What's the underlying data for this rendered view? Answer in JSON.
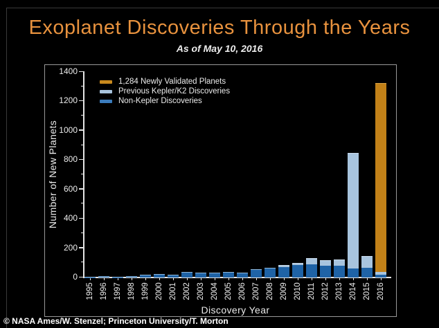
{
  "header": {
    "title": "Exoplanet Discoveries Through the Years",
    "subtitle": "As of May 10, 2016"
  },
  "footer": {
    "credit": "© NASA Ames/W. Stenzel; Princeton University/T. Morton"
  },
  "colors": {
    "background": "#000000",
    "title": "#E8923E",
    "text": "#ECECEC",
    "axis": "#E6E6E6",
    "frame": "#9A9A9A",
    "non_kepler_bar": "#1F63A6",
    "non_kepler_edge": "#8FB6D8",
    "kepler_bar": "#A8C4DE",
    "kepler_edge": "#CBDDEE",
    "new_planets_bar": "#C28118",
    "new_planets_edge": "#D9A347",
    "legend_non_kepler": "#3B7CBC"
  },
  "chart_data": {
    "type": "bar",
    "stacked": true,
    "title": "Exoplanet Discoveries Through the Years",
    "subtitle": "As of May 10, 2016",
    "xlabel": "Discovery Year",
    "ylabel": "Number of New Planets",
    "ylim": [
      0,
      1400
    ],
    "yticks": [
      0,
      200,
      400,
      600,
      800,
      1000,
      1200,
      1400
    ],
    "grid": false,
    "legend_position": "upper-left",
    "categories": [
      "1995",
      "1996",
      "1997",
      "1998",
      "1999",
      "2000",
      "2001",
      "2002",
      "2003",
      "2004",
      "2005",
      "2006",
      "2007",
      "2008",
      "2009",
      "2010",
      "2011",
      "2012",
      "2013",
      "2014",
      "2015",
      "2016"
    ],
    "series": [
      {
        "name": "Non-Kepler Discoveries",
        "color": "#1F63A6",
        "values": [
          1,
          6,
          1,
          7,
          14,
          17,
          13,
          31,
          26,
          29,
          33,
          29,
          50,
          60,
          72,
          85,
          90,
          80,
          80,
          60,
          65,
          20
        ]
      },
      {
        "name": "Previous Kepler/K2 Discoveries",
        "color": "#A8C4DE",
        "values": [
          0,
          0,
          0,
          0,
          0,
          0,
          0,
          0,
          0,
          0,
          0,
          0,
          0,
          0,
          6,
          10,
          35,
          35,
          40,
          785,
          75,
          18
        ]
      },
      {
        "name": "1,284 Newly Validated Planets",
        "color": "#C28118",
        "values": [
          0,
          0,
          0,
          0,
          0,
          0,
          0,
          0,
          0,
          0,
          0,
          0,
          0,
          0,
          0,
          0,
          0,
          0,
          0,
          0,
          0,
          1284
        ]
      }
    ],
    "legend": [
      {
        "label": "1,284 Newly Validated Planets",
        "color": "#C98A1E"
      },
      {
        "label": "Previous Kepler/K2 Discoveries",
        "color": "#A8C4DE"
      },
      {
        "label": "Non-Kepler Discoveries",
        "color": "#3B7CBC"
      }
    ]
  }
}
